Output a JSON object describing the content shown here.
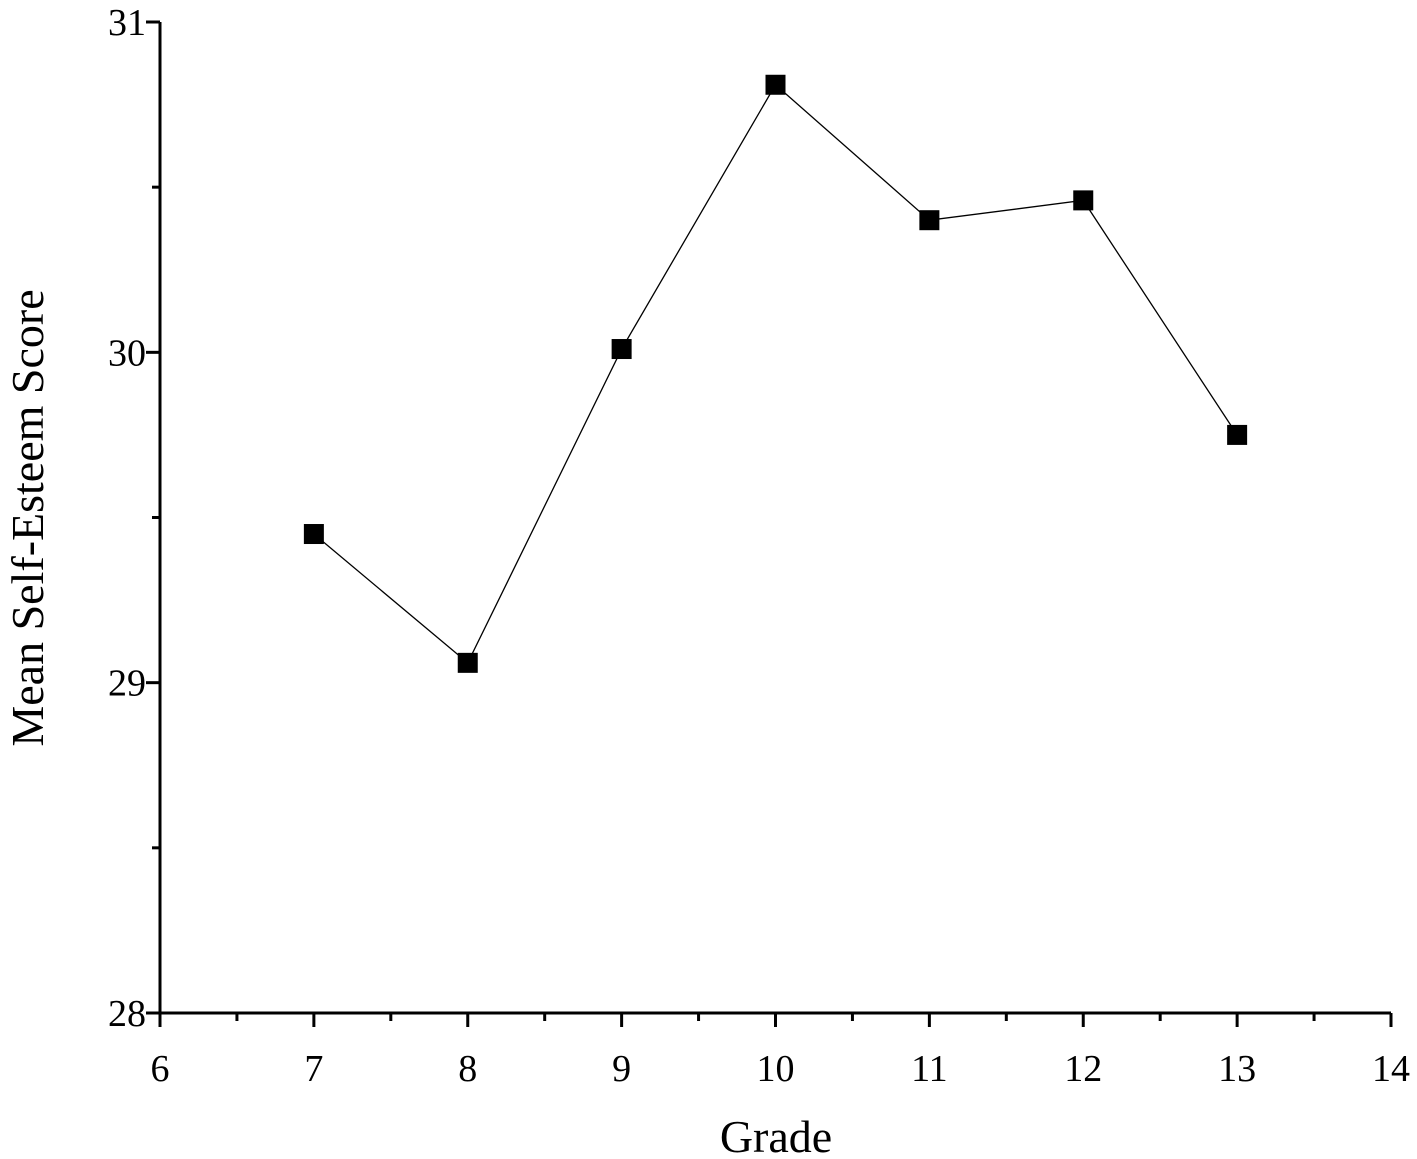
{
  "chart_data": {
    "type": "line",
    "title": "",
    "xlabel": "Grade",
    "ylabel": "Mean Self-Esteem Score",
    "xlim": [
      6,
      14
    ],
    "ylim": [
      28,
      31
    ],
    "x_ticks": [
      "6",
      "7",
      "8",
      "9",
      "10",
      "11",
      "12",
      "13",
      "14"
    ],
    "y_ticks": [
      "28",
      "29",
      "30",
      "31"
    ],
    "grid": false,
    "marker": "square",
    "series": [
      {
        "x": [
          7,
          8,
          9,
          10,
          11,
          12,
          13
        ],
        "values": [
          29.45,
          29.06,
          30.01,
          30.81,
          30.4,
          30.46,
          29.75
        ]
      }
    ]
  }
}
